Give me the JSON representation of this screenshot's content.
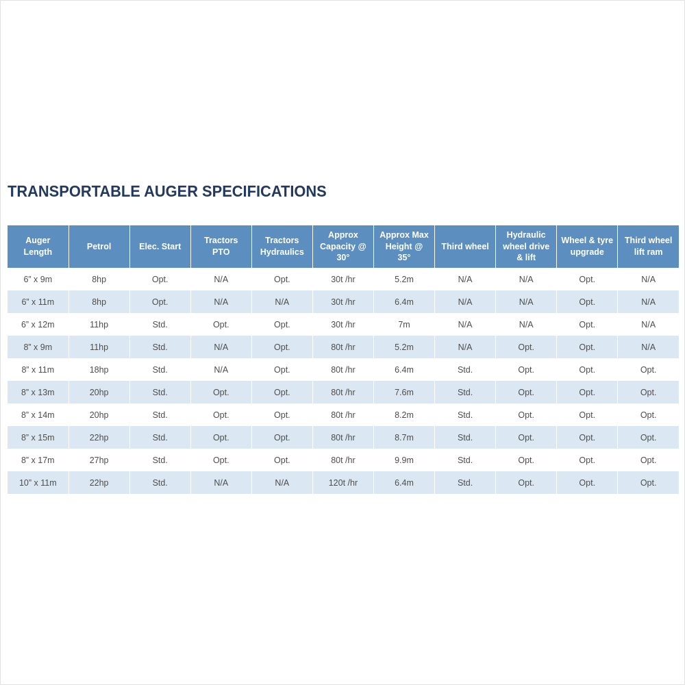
{
  "page": {
    "title": "TRANSPORTABLE AUGER SPECIFICATIONS"
  },
  "colors": {
    "header_bg": "#5c8fc0",
    "header_text": "#ffffff",
    "row_alt_bg": "#dbe8f4",
    "title_color": "#233a5e",
    "body_text": "#4d4d4d"
  },
  "table": {
    "columns": [
      "Auger Length",
      "Petrol",
      "Elec. Start",
      "Tractors PTO",
      "Tractors Hydraulics",
      "Approx Capacity @ 30°",
      "Approx Max Height @ 35°",
      "Third wheel",
      "Hydraulic wheel drive & lift",
      "Wheel & tyre upgrade",
      "Third wheel lift ram"
    ],
    "rows": [
      [
        "6” x 9m",
        "8hp",
        "Opt.",
        "N/A",
        "Opt.",
        "30t /hr",
        "5.2m",
        "N/A",
        "N/A",
        "Opt.",
        "N/A"
      ],
      [
        "6” x 11m",
        "8hp",
        "Opt.",
        "N/A",
        "N/A",
        "30t /hr",
        "6.4m",
        "N/A",
        "N/A",
        "Opt.",
        "N/A"
      ],
      [
        "6” x 12m",
        "11hp",
        "Std.",
        "Opt.",
        "Opt.",
        "30t /hr",
        "7m",
        "N/A",
        "N/A",
        "Opt.",
        "N/A"
      ],
      [
        "8” x 9m",
        "11hp",
        "Std.",
        "N/A",
        "Opt.",
        "80t /hr",
        "5.2m",
        "N/A",
        "Opt.",
        "Opt.",
        "N/A"
      ],
      [
        "8” x 11m",
        "18hp",
        "Std.",
        "N/A",
        "Opt.",
        "80t /hr",
        "6.4m",
        "Std.",
        "Opt.",
        "Opt.",
        "Opt."
      ],
      [
        "8” x 13m",
        "20hp",
        "Std.",
        "Opt.",
        "Opt.",
        "80t /hr",
        "7.6m",
        "Std.",
        "Opt.",
        "Opt.",
        "Opt."
      ],
      [
        "8” x 14m",
        "20hp",
        "Std.",
        "Opt.",
        "Opt.",
        "80t /hr",
        "8.2m",
        "Std.",
        "Opt.",
        "Opt.",
        "Opt."
      ],
      [
        "8” x 15m",
        "22hp",
        "Std.",
        "Opt.",
        "Opt.",
        "80t /hr",
        "8.7m",
        "Std.",
        "Opt.",
        "Opt.",
        "Opt."
      ],
      [
        "8” x 17m",
        "27hp",
        "Std.",
        "Opt.",
        "Opt.",
        "80t /hr",
        "9.9m",
        "Std.",
        "Opt.",
        "Opt.",
        "Opt."
      ],
      [
        "10” x 11m",
        "22hp",
        "Std.",
        "N/A",
        "N/A",
        "120t /hr",
        "6.4m",
        "Std.",
        "Opt.",
        "Opt.",
        "Opt."
      ]
    ]
  }
}
